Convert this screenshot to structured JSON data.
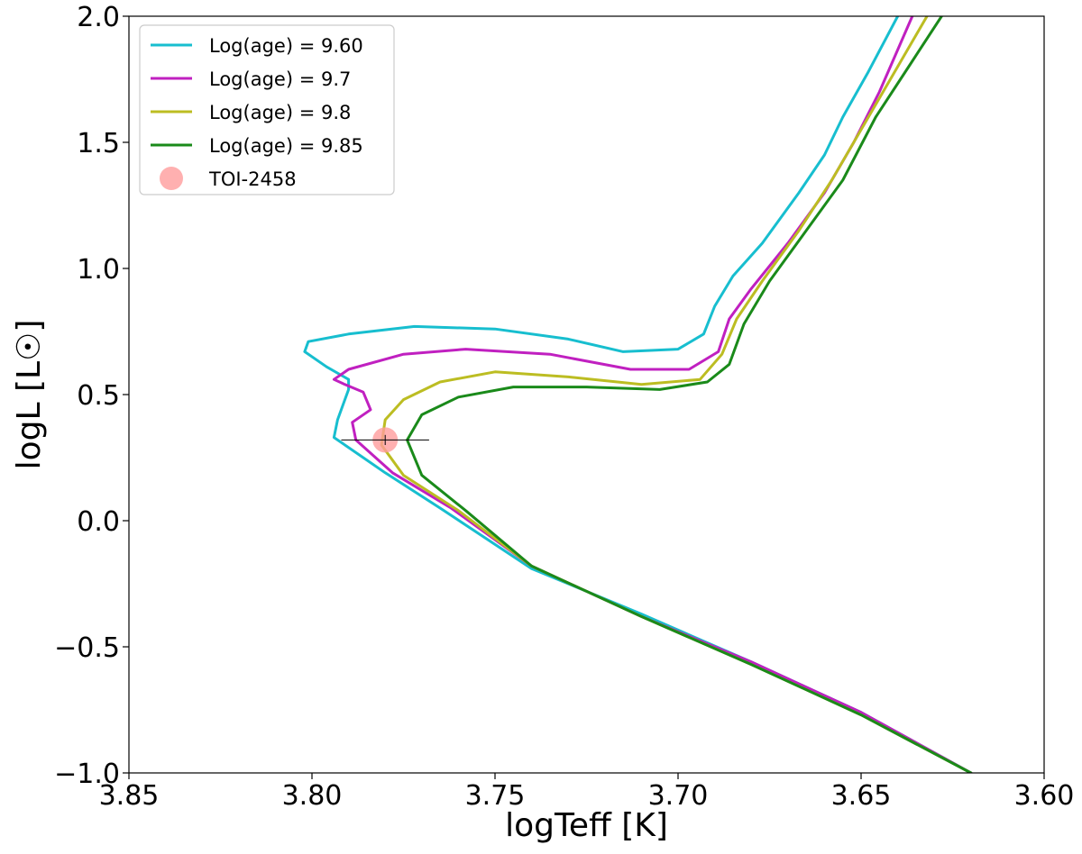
{
  "chart_data": {
    "type": "line",
    "xlabel": "logTeff [K]",
    "ylabel": "logL [L☉]",
    "xlim": [
      3.85,
      3.6
    ],
    "ylim": [
      -1.0,
      2.0
    ],
    "x_inverted": true,
    "grid": false,
    "legend_position": "top-left",
    "xticks": [
      "3.85",
      "3.80",
      "3.75",
      "3.70",
      "3.65",
      "3.60"
    ],
    "yticks": [
      "2.0",
      "1.5",
      "1.0",
      "0.5",
      "0.0",
      "−0.5",
      "−1.0"
    ],
    "series": [
      {
        "name": "Log(age) = 9.60",
        "color": "#17becf",
        "points": [
          [
            3.62,
            -1.0
          ],
          [
            3.65,
            -0.76
          ],
          [
            3.68,
            -0.56
          ],
          [
            3.71,
            -0.37
          ],
          [
            3.74,
            -0.19
          ],
          [
            3.765,
            0.05
          ],
          [
            3.78,
            0.19
          ],
          [
            3.794,
            0.33
          ],
          [
            3.793,
            0.4
          ],
          [
            3.791,
            0.48
          ],
          [
            3.79,
            0.52
          ],
          [
            3.79,
            0.56
          ],
          [
            3.796,
            0.61
          ],
          [
            3.802,
            0.67
          ],
          [
            3.801,
            0.71
          ],
          [
            3.79,
            0.74
          ],
          [
            3.772,
            0.77
          ],
          [
            3.75,
            0.76
          ],
          [
            3.73,
            0.72
          ],
          [
            3.715,
            0.67
          ],
          [
            3.7,
            0.68
          ],
          [
            3.693,
            0.74
          ],
          [
            3.69,
            0.85
          ],
          [
            3.685,
            0.97
          ],
          [
            3.677,
            1.1
          ],
          [
            3.667,
            1.3
          ],
          [
            3.66,
            1.45
          ],
          [
            3.655,
            1.6
          ],
          [
            3.648,
            1.78
          ],
          [
            3.64,
            2.0
          ]
        ]
      },
      {
        "name": "Log(age) = 9.7",
        "color": "#c020c0",
        "points": [
          [
            3.62,
            -1.0
          ],
          [
            3.65,
            -0.76
          ],
          [
            3.68,
            -0.56
          ],
          [
            3.71,
            -0.38
          ],
          [
            3.74,
            -0.18
          ],
          [
            3.762,
            0.05
          ],
          [
            3.778,
            0.19
          ],
          [
            3.788,
            0.32
          ],
          [
            3.789,
            0.39
          ],
          [
            3.784,
            0.44
          ],
          [
            3.786,
            0.51
          ],
          [
            3.791,
            0.54
          ],
          [
            3.794,
            0.56
          ],
          [
            3.79,
            0.6
          ],
          [
            3.775,
            0.66
          ],
          [
            3.758,
            0.68
          ],
          [
            3.735,
            0.66
          ],
          [
            3.713,
            0.6
          ],
          [
            3.697,
            0.6
          ],
          [
            3.689,
            0.67
          ],
          [
            3.686,
            0.8
          ],
          [
            3.68,
            0.92
          ],
          [
            3.67,
            1.1
          ],
          [
            3.66,
            1.3
          ],
          [
            3.652,
            1.5
          ],
          [
            3.645,
            1.7
          ],
          [
            3.636,
            2.0
          ]
        ]
      },
      {
        "name": "Log(age) = 9.8",
        "color": "#bcbd22",
        "points": [
          [
            3.62,
            -1.0
          ],
          [
            3.65,
            -0.77
          ],
          [
            3.68,
            -0.57
          ],
          [
            3.71,
            -0.38
          ],
          [
            3.74,
            -0.18
          ],
          [
            3.76,
            0.04
          ],
          [
            3.775,
            0.18
          ],
          [
            3.781,
            0.3
          ],
          [
            3.78,
            0.4
          ],
          [
            3.775,
            0.48
          ],
          [
            3.765,
            0.55
          ],
          [
            3.75,
            0.59
          ],
          [
            3.73,
            0.57
          ],
          [
            3.71,
            0.54
          ],
          [
            3.694,
            0.56
          ],
          [
            3.688,
            0.66
          ],
          [
            3.684,
            0.8
          ],
          [
            3.677,
            0.95
          ],
          [
            3.667,
            1.15
          ],
          [
            3.658,
            1.35
          ],
          [
            3.648,
            1.6
          ],
          [
            3.64,
            1.8
          ],
          [
            3.632,
            2.0
          ]
        ]
      },
      {
        "name": "Log(age) = 9.85",
        "color": "#1a8a1a",
        "points": [
          [
            3.62,
            -1.0
          ],
          [
            3.65,
            -0.77
          ],
          [
            3.68,
            -0.57
          ],
          [
            3.71,
            -0.38
          ],
          [
            3.74,
            -0.18
          ],
          [
            3.758,
            0.04
          ],
          [
            3.77,
            0.18
          ],
          [
            3.774,
            0.32
          ],
          [
            3.77,
            0.42
          ],
          [
            3.76,
            0.49
          ],
          [
            3.745,
            0.53
          ],
          [
            3.725,
            0.53
          ],
          [
            3.705,
            0.52
          ],
          [
            3.692,
            0.55
          ],
          [
            3.686,
            0.62
          ],
          [
            3.682,
            0.78
          ],
          [
            3.675,
            0.95
          ],
          [
            3.665,
            1.15
          ],
          [
            3.655,
            1.35
          ],
          [
            3.646,
            1.6
          ],
          [
            3.637,
            1.8
          ],
          [
            3.628,
            2.0
          ]
        ]
      }
    ],
    "point_series": {
      "name": "TOI-2458",
      "color": "#ff9c9c",
      "x": 3.78,
      "y": 0.32,
      "x_err": 0.012,
      "y_err": 0.02
    }
  }
}
